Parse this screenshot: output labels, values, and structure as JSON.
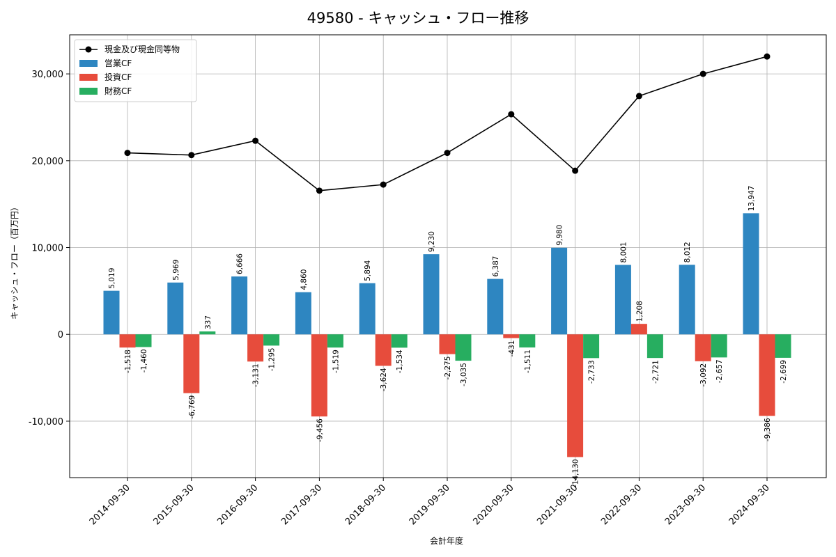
{
  "chart_data": {
    "type": "bar",
    "title": "49580 - キャッシュ・フロー推移",
    "xlabel": "会計年度",
    "ylabel": "キャッシュ・フロー（百万円）",
    "ylim": [
      -16500,
      34500
    ],
    "yticks": [
      -10000,
      0,
      10000,
      20000,
      30000
    ],
    "ytick_labels": [
      "-10,000",
      "0",
      "10,000",
      "20,000",
      "30,000"
    ],
    "grid": true,
    "legend_position": "top-left",
    "categories": [
      "2014-09-30",
      "2015-09-30",
      "2016-09-30",
      "2017-09-30",
      "2018-09-30",
      "2019-09-30",
      "2020-09-30",
      "2021-09-30",
      "2022-09-30",
      "2023-09-30",
      "2024-09-30"
    ],
    "line": {
      "name": "現金及び現金同等物",
      "color": "#000000",
      "values": [
        20900,
        20650,
        22300,
        16550,
        17250,
        20900,
        25350,
        18850,
        27450,
        30000,
        32000
      ]
    },
    "series": [
      {
        "name": "営業CF",
        "color": "#2e86c1",
        "values": [
          5019,
          5969,
          6666,
          4860,
          5894,
          9230,
          6387,
          9980,
          8001,
          8012,
          13947
        ],
        "labels": [
          "5,019",
          "5,969",
          "6,666",
          "4,860",
          "5,894",
          "9,230",
          "6,387",
          "9,980",
          "8,001",
          "8,012",
          "13,947"
        ]
      },
      {
        "name": "投資CF",
        "color": "#e74c3c",
        "values": [
          -1518,
          -6769,
          -3131,
          -9456,
          -3624,
          -2275,
          -431,
          -14130,
          1208,
          -3092,
          -9386
        ],
        "labels": [
          "-1,518",
          "-6,769",
          "-3,131",
          "-9,456",
          "-3,624",
          "-2,275",
          "-431",
          "-14,130",
          "1,208",
          "-3,092",
          "-9,386"
        ]
      },
      {
        "name": "財務CF",
        "color": "#27ae60",
        "values": [
          -1460,
          337,
          -1295,
          -1519,
          -1534,
          -3035,
          -1511,
          -2733,
          -2721,
          -2657,
          -2699
        ],
        "labels": [
          "-1,460",
          "337",
          "-1,295",
          "-1,519",
          "-1,534",
          "-3,035",
          "-1,511",
          "-2,733",
          "-2,721",
          "-2,657",
          "-2,699"
        ]
      }
    ]
  }
}
